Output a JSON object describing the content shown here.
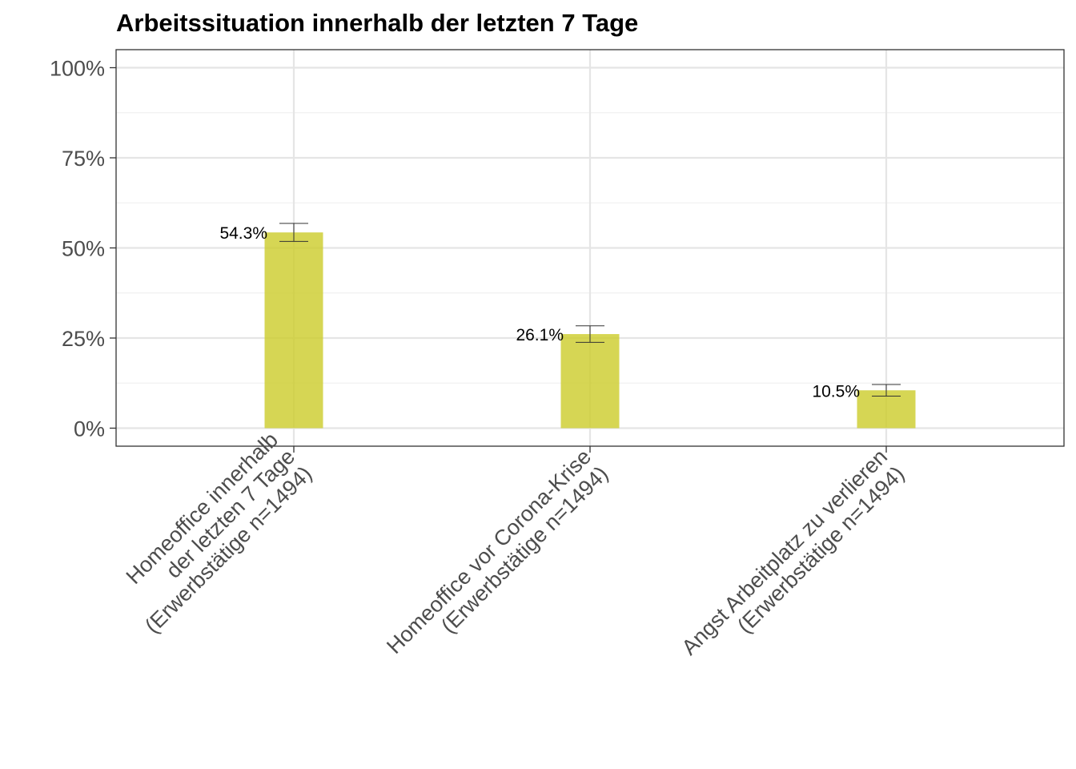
{
  "colors": {
    "bar": "#cccc29",
    "grid_major": "#e5e5e5",
    "grid_minor": "#f0f0f0",
    "panel_border": "#333333",
    "tick_text": "#4d4d4d",
    "errorbar": "#333333"
  },
  "chart_data": {
    "type": "bar",
    "title": "Arbeitssituation innerhalb der letzten 7 Tage",
    "xlabel": "",
    "ylabel": "",
    "ylim": [
      -0.05,
      1.05
    ],
    "grid": true,
    "legend": "none",
    "y_ticks": [
      {
        "value": 0,
        "label": "0%"
      },
      {
        "value": 0.25,
        "label": "25%"
      },
      {
        "value": 0.5,
        "label": "50%"
      },
      {
        "value": 0.75,
        "label": "75%"
      },
      {
        "value": 1.0,
        "label": "100%"
      }
    ],
    "categories": [
      "Homeoffice innerhalb der letzten 7 Tage (Erwerbstätige n=1494)",
      "Homeoffice vor Corona-Krise (Erwerbstätige n=1494)",
      "Angst Arbeitplatz zu verlieren (Erwerbstätige n=1494)"
    ],
    "category_lines": [
      [
        "Homeoffice innerhalb",
        "der letzten 7 Tage",
        "(Erwerbstätige n=1494)"
      ],
      [
        "Homeoffice vor Corona-Krise",
        "(Erwerbstätige n=1494)"
      ],
      [
        "Angst Arbeitplatz zu verlieren",
        "(Erwerbstätige n=1494)"
      ]
    ],
    "values": [
      0.543,
      0.261,
      0.105
    ],
    "data_labels": [
      "54.3%",
      "26.1%",
      "10.5%"
    ],
    "error_low": [
      0.518,
      0.238,
      0.089
    ],
    "error_high": [
      0.568,
      0.284,
      0.121
    ]
  }
}
